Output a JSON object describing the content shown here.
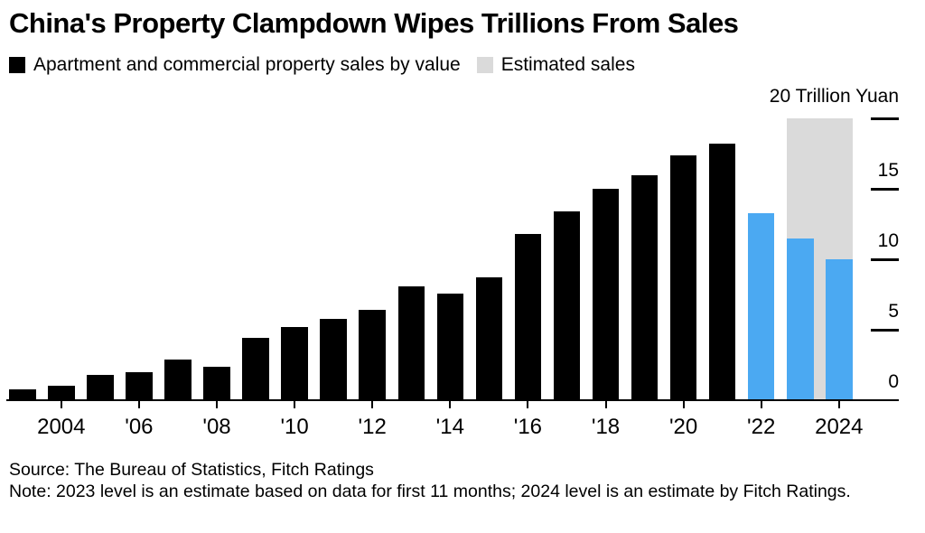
{
  "title": "China's Property Clampdown Wipes Trillions From Sales",
  "legend": {
    "actual_label": "Apartment and commercial property sales by value",
    "estimated_label": "Estimated sales"
  },
  "axis": {
    "unit_label": "20 Trillion Yuan"
  },
  "footer": {
    "source": "Source: The Bureau of Statistics, Fitch Ratings",
    "note": "Note: 2023 level is an estimate based on data for first 11 months; 2024 level is an estimate by Fitch Ratings."
  },
  "colors": {
    "actual": "#000000",
    "recent": "#4BA9F2",
    "estimated": "#DADADA"
  },
  "chart_data": {
    "type": "bar",
    "title": "China's Property Clampdown Wipes Trillions From Sales",
    "ylabel": "Trillion Yuan",
    "ylim": [
      0,
      20
    ],
    "y_ticks": [
      0,
      5,
      10,
      15,
      20
    ],
    "grid": false,
    "legend_position": "top",
    "years": [
      2003,
      2004,
      2005,
      2006,
      2007,
      2008,
      2009,
      2010,
      2011,
      2012,
      2013,
      2014,
      2015,
      2016,
      2017,
      2018,
      2019,
      2020,
      2021,
      2022,
      2023,
      2024
    ],
    "values": [
      0.8,
      1.0,
      1.8,
      2.0,
      2.9,
      2.4,
      4.4,
      5.2,
      5.8,
      6.4,
      8.1,
      7.6,
      8.7,
      11.8,
      13.4,
      15.0,
      16.0,
      17.4,
      18.2,
      13.3,
      11.5,
      10.0
    ],
    "series": [
      {
        "name": "Apartment and commercial property sales by value",
        "color_rule": "black before 2022, blue from 2022"
      }
    ],
    "blue_years": [
      2022,
      2023,
      2024
    ],
    "estimated_band": {
      "name": "Estimated sales",
      "from_year": 2023,
      "to_year": 2024,
      "value": 20
    },
    "x_tick_labels": [
      "2004",
      "'06",
      "'08",
      "'10",
      "'12",
      "'14",
      "'16",
      "'18",
      "'20",
      "'22",
      "2024"
    ]
  }
}
